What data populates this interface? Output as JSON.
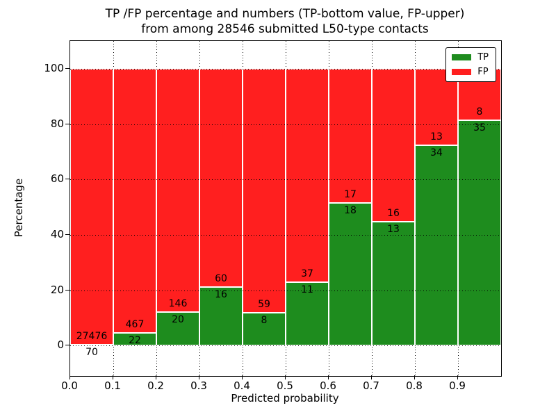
{
  "title": {
    "line1": "TP /FP percentage and numbers (TP-bottom value, FP-upper)",
    "line2": "from among 28546 submitted L50-type contacts"
  },
  "axes": {
    "xlabel": "Predicted probability",
    "ylabel": "Percentage",
    "x_tick_labels": [
      "0.0",
      "0.1",
      "0.2",
      "0.3",
      "0.4",
      "0.5",
      "0.6",
      "0.7",
      "0.8",
      "0.9"
    ],
    "y_tick_labels": [
      "0",
      "20",
      "40",
      "60",
      "80",
      "100"
    ],
    "y_tick_values": [
      0,
      20,
      40,
      60,
      80,
      100
    ],
    "xlim": [
      0.0,
      1.0
    ],
    "ylim": [
      -11,
      110
    ],
    "grid_style": "dotted"
  },
  "legend": {
    "position": "upper right",
    "items": [
      {
        "label": "TP",
        "color": "#1e8c1e"
      },
      {
        "label": "FP",
        "color": "#ff1f1f"
      }
    ]
  },
  "chart_data": {
    "type": "bar",
    "stacked": true,
    "orientation": "vertical",
    "total_contacts": 28546,
    "bin_width": 0.1,
    "x_bins": [
      0.0,
      0.1,
      0.2,
      0.3,
      0.4,
      0.5,
      0.6,
      0.7,
      0.8,
      0.9
    ],
    "series": [
      {
        "name": "TP",
        "color": "#1e8c1e",
        "counts": [
          70,
          22,
          20,
          16,
          8,
          11,
          18,
          13,
          34,
          35
        ],
        "percent": [
          0.25,
          4.5,
          12.05,
          21.05,
          11.94,
          22.92,
          51.43,
          44.83,
          72.34,
          81.4
        ]
      },
      {
        "name": "FP",
        "color": "#ff1f1f",
        "counts": [
          27476,
          467,
          146,
          60,
          59,
          37,
          17,
          16,
          13,
          8
        ],
        "percent": [
          99.75,
          95.5,
          87.95,
          78.95,
          88.06,
          77.08,
          48.57,
          55.17,
          27.66,
          18.6
        ]
      }
    ],
    "annotation_note": "TP count drawn below stack boundary, FP count above"
  }
}
